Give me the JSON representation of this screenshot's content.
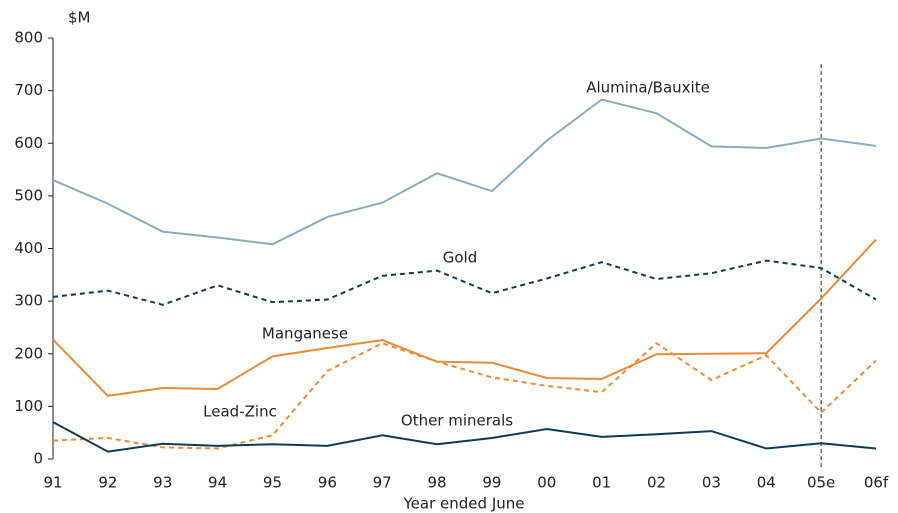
{
  "chart_data": {
    "type": "line",
    "y_unit": "$M",
    "x_label": "Year ended June",
    "categories": [
      "91",
      "92",
      "93",
      "94",
      "95",
      "96",
      "97",
      "98",
      "99",
      "00",
      "01",
      "02",
      "03",
      "04",
      "05e",
      "06f"
    ],
    "ylim": [
      0,
      800
    ],
    "yticks": [
      0,
      100,
      200,
      300,
      400,
      500,
      600,
      700,
      800
    ],
    "series": [
      {
        "name": "Alumina/Bauxite",
        "color": "#8aacbf",
        "style": "solid",
        "values": [
          530,
          485,
          432,
          421,
          408,
          460,
          487,
          543,
          509,
          605,
          683,
          657,
          594,
          591,
          609,
          595
        ]
      },
      {
        "name": "Gold",
        "color": "#0d3b55",
        "style": "dashed",
        "values": [
          308,
          320,
          293,
          330,
          298,
          303,
          348,
          358,
          315,
          343,
          374,
          342,
          353,
          377,
          363,
          303
        ]
      },
      {
        "name": "Manganese",
        "color": "#ee8a35",
        "style": "solid",
        "values": [
          227,
          120,
          135,
          133,
          195,
          211,
          226,
          185,
          183,
          154,
          152,
          199,
          200,
          201,
          305,
          417
        ]
      },
      {
        "name": "Lead-Zinc",
        "color": "#ee8a35",
        "style": "dashed",
        "values": [
          35,
          40,
          22,
          20,
          45,
          167,
          220,
          185,
          155,
          139,
          127,
          220,
          150,
          197,
          88,
          187
        ]
      },
      {
        "name": "Other minerals",
        "color": "#0d3b55",
        "style": "solid",
        "values": [
          70,
          14,
          29,
          25,
          28,
          25,
          45,
          28,
          40,
          57,
          42,
          47,
          53,
          20,
          30,
          20
        ]
      }
    ]
  }
}
